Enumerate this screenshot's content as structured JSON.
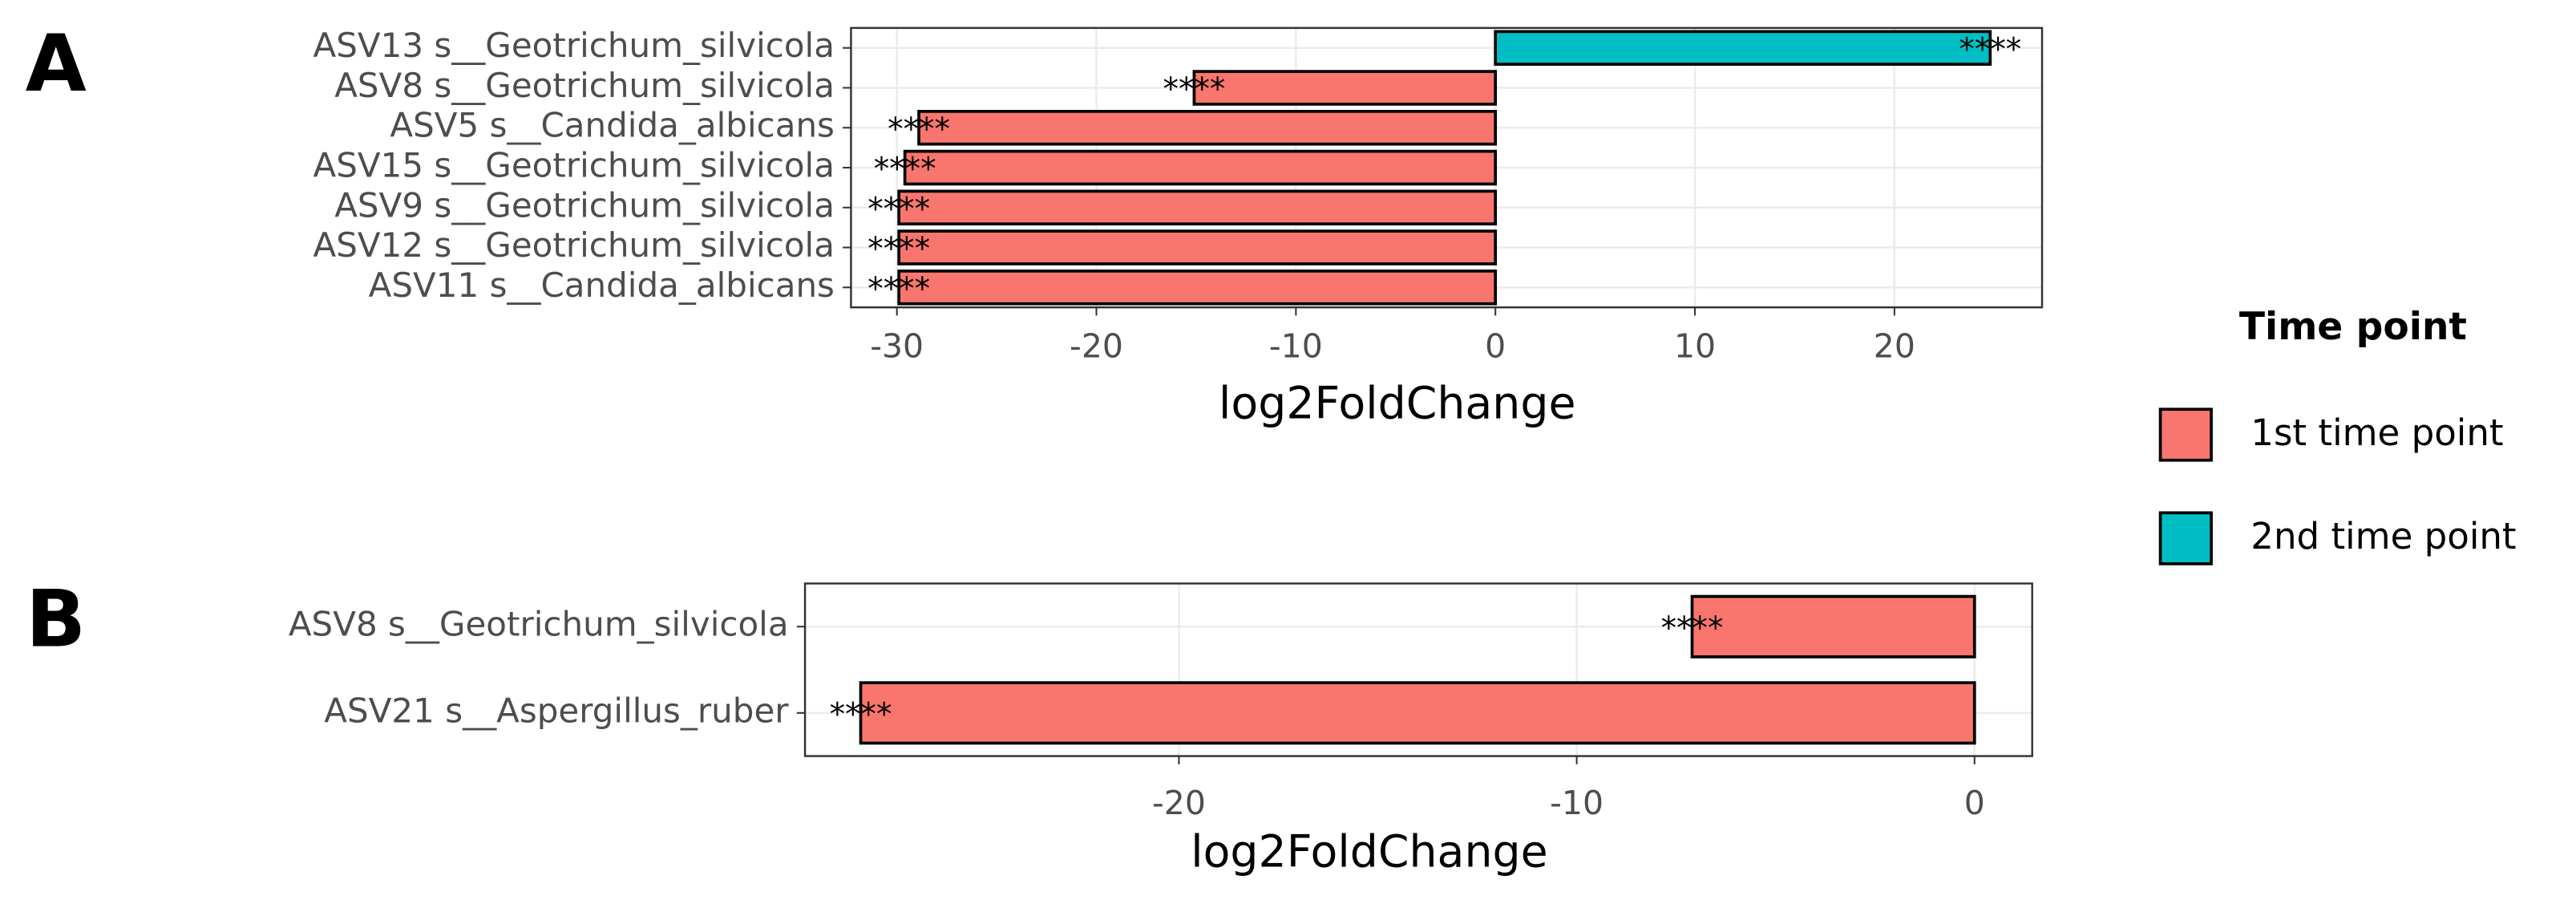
{
  "chart_data": [
    {
      "type": "bar",
      "orientation": "horizontal",
      "panel_label": "A",
      "categories": [
        "ASV13 s__Geotrichum_silvicola",
        "ASV8 s__Geotrichum_silvicola",
        "ASV5 s__Candida_albicans",
        "ASV15 s__Geotrichum_silvicola",
        "ASV9 s__Geotrichum_silvicola",
        "ASV12 s__Geotrichum_silvicola",
        "ASV11 s__Candida_albicans"
      ],
      "series": [
        {
          "name": "1st time point",
          "color": "#f8766d",
          "values": [
            null,
            -15.1,
            -28.9,
            -29.6,
            -29.9,
            -29.9,
            -29.9
          ]
        },
        {
          "name": "2nd time point",
          "color": "#00bfc4",
          "values": [
            24.8,
            null,
            null,
            null,
            null,
            null,
            null
          ]
        }
      ],
      "significance": [
        "****",
        "****",
        "****",
        "****",
        "****",
        "****",
        "****"
      ],
      "x_label": "log2FoldChange",
      "xlim": [
        -32.3,
        27.4
      ],
      "xticks": [
        -30,
        -20,
        -10,
        0,
        10,
        20
      ],
      "grid": true,
      "legend": {
        "title": "Time point",
        "position": "right"
      }
    },
    {
      "type": "bar",
      "orientation": "horizontal",
      "panel_label": "B",
      "categories": [
        "ASV8 s__Geotrichum_silvicola",
        "ASV21 s__Aspergillus_ruber"
      ],
      "values": [
        -7.1,
        -28.0
      ],
      "color": "#f8766d",
      "significance": [
        "****",
        "****"
      ],
      "x_label": "log2FoldChange",
      "xlim": [
        -29.4,
        1.45
      ],
      "xticks": [
        -20,
        -10,
        0
      ],
      "grid": true
    }
  ]
}
